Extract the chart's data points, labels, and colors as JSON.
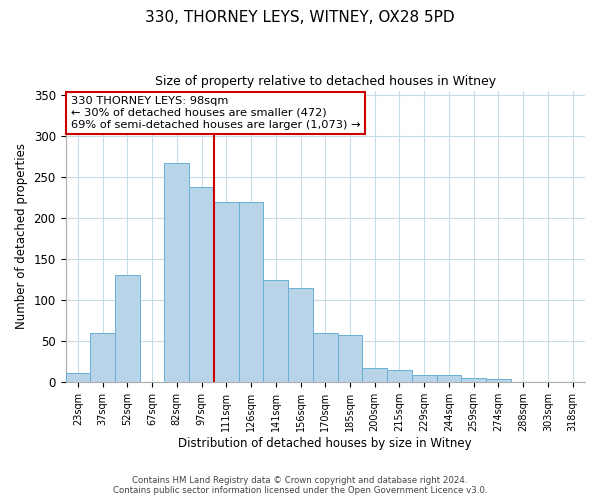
{
  "title": "330, THORNEY LEYS, WITNEY, OX28 5PD",
  "subtitle": "Size of property relative to detached houses in Witney",
  "xlabel": "Distribution of detached houses by size in Witney",
  "ylabel": "Number of detached properties",
  "categories": [
    "23sqm",
    "37sqm",
    "52sqm",
    "67sqm",
    "82sqm",
    "97sqm",
    "111sqm",
    "126sqm",
    "141sqm",
    "156sqm",
    "170sqm",
    "185sqm",
    "200sqm",
    "215sqm",
    "229sqm",
    "244sqm",
    "259sqm",
    "274sqm",
    "288sqm",
    "303sqm",
    "318sqm"
  ],
  "values": [
    11,
    60,
    131,
    0,
    267,
    238,
    220,
    220,
    125,
    115,
    60,
    57,
    18,
    15,
    9,
    9,
    5,
    4,
    1,
    0,
    0
  ],
  "bar_color": "#b8d4e8",
  "bar_edge_color": "#6ab0d4",
  "vline_color": "#cc0000",
  "vline_x_idx": 5,
  "annotation_text": "330 THORNEY LEYS: 98sqm\n← 30% of detached houses are smaller (472)\n69% of semi-detached houses are larger (1,073) →",
  "annotation_box_color": "#ffffff",
  "annotation_box_edge": "#cc0000",
  "ylim": [
    0,
    355
  ],
  "yticks": [
    0,
    50,
    100,
    150,
    200,
    250,
    300,
    350
  ],
  "footer1": "Contains HM Land Registry data © Crown copyright and database right 2024.",
  "footer2": "Contains public sector information licensed under the Open Government Licence v3.0.",
  "background_color": "#ffffff",
  "grid_color": "#c8dce8"
}
